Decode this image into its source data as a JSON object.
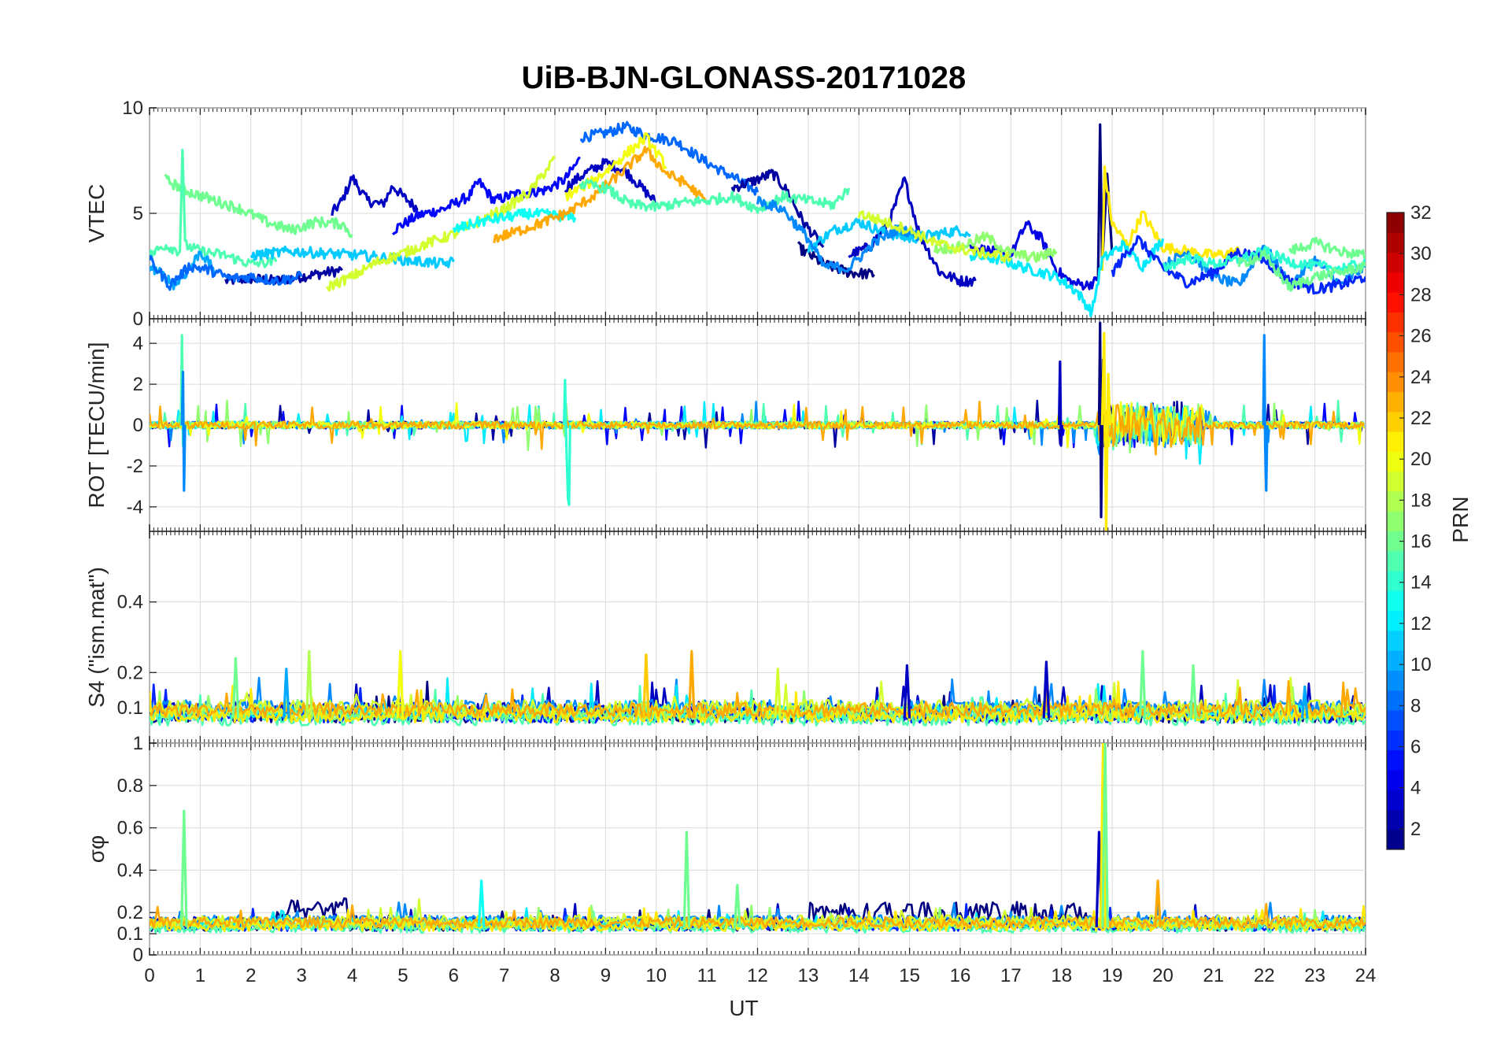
{
  "chart_data": {
    "type": "line",
    "title": "UiB-BJN-GLONASS-20171028",
    "xlabel": "UT",
    "x_range": [
      0,
      24
    ],
    "x_ticks": [
      "0",
      "1",
      "2",
      "3",
      "4",
      "5",
      "6",
      "7",
      "8",
      "9",
      "10",
      "11",
      "12",
      "13",
      "14",
      "15",
      "16",
      "17",
      "18",
      "19",
      "20",
      "21",
      "22",
      "23",
      "24"
    ],
    "panels": [
      {
        "name": "vtec",
        "ylabel": "VTEC",
        "ylim": [
          0,
          10
        ],
        "y_ticks": [
          {
            "v": 0,
            "label": "0"
          },
          {
            "v": 5,
            "label": "5"
          },
          {
            "v": 10,
            "label": "10"
          }
        ],
        "series": [
          {
            "prn": 2,
            "x": [
              1.5,
              2.0,
              2.5,
              3.0,
              3.5,
              3.8
            ],
            "y": [
              1.8,
              1.9,
              1.8,
              2.0,
              2.2,
              2.3
            ]
          },
          {
            "prn": 3,
            "x": [
              3.6,
              3.8,
              4.0,
              4.3,
              4.6,
              4.8,
              5.0,
              5.3
            ],
            "y": [
              5.0,
              5.6,
              6.7,
              5.6,
              5.4,
              6.3,
              5.8,
              5.2
            ]
          },
          {
            "prn": 5,
            "x": [
              4.8,
              5.3,
              5.8,
              6.3,
              6.5,
              6.8,
              7.2,
              7.8,
              8.2,
              8.5
            ],
            "y": [
              4.2,
              4.9,
              5.2,
              5.8,
              6.5,
              5.6,
              5.9,
              6.1,
              6.6,
              7.6
            ]
          },
          {
            "prn": 8,
            "x": [
              8.5,
              9.0,
              9.4,
              9.8,
              10.4,
              11.0,
              11.6,
              12.0
            ],
            "y": [
              8.6,
              8.8,
              9.1,
              8.7,
              8.4,
              7.4,
              6.6,
              6.0
            ]
          },
          {
            "prn": 3,
            "x": [
              8.2,
              8.6,
              9.0,
              9.4,
              9.8,
              10.0
            ],
            "y": [
              6.2,
              6.9,
              7.4,
              7.0,
              6.0,
              5.5
            ]
          },
          {
            "prn": 2,
            "x": [
              11.5,
              12.0,
              12.3,
              12.6,
              12.9,
              13.3
            ],
            "y": [
              6.2,
              6.6,
              6.9,
              6.0,
              4.6,
              3.4
            ]
          },
          {
            "prn": 1,
            "x": [
              12.8,
              13.3,
              13.8,
              14.3
            ],
            "y": [
              3.4,
              2.6,
              2.2,
              2.1
            ]
          },
          {
            "prn": 3,
            "x": [
              13.8,
              14.2,
              14.6,
              14.9,
              15.2,
              15.6,
              16.0,
              16.3
            ],
            "y": [
              3.0,
              3.4,
              4.6,
              6.6,
              4.0,
              2.2,
              1.8,
              1.8
            ]
          },
          {
            "prn": 11,
            "x": [
              13.0,
              13.5,
              14.0,
              14.5,
              15.0,
              15.5,
              16.0,
              16.2
            ],
            "y": [
              3.3,
              4.2,
              4.6,
              4.1,
              3.8,
              4.0,
              4.2,
              4.0
            ]
          },
          {
            "prn": 4,
            "x": [
              16.2,
              16.6,
              17.0,
              17.3,
              17.6,
              17.9,
              18.2,
              18.5,
              18.7
            ],
            "y": [
              3.4,
              3.2,
              3.0,
              4.5,
              3.8,
              2.3,
              1.7,
              1.6,
              1.8
            ]
          },
          {
            "prn": 1,
            "x": [
              18.72,
              18.76,
              18.8,
              18.9,
              19.0
            ],
            "y": [
              1.8,
              9.3,
              2.5,
              6.8,
              3.0
            ]
          },
          {
            "prn": 21,
            "x": [
              18.8,
              18.85,
              19.0,
              19.3,
              19.6,
              20.0,
              20.5,
              21.0,
              21.5
            ],
            "y": [
              2.3,
              7.0,
              4.5,
              3.5,
              5.0,
              3.4,
              3.2,
              3.0,
              3.2
            ]
          },
          {
            "prn": 12,
            "x": [
              16.2,
              16.8,
              17.3,
              17.9,
              18.3,
              18.6,
              18.8,
              19.2,
              19.6,
              20.0
            ],
            "y": [
              3.0,
              2.8,
              2.4,
              2.0,
              1.3,
              0.3,
              2.8,
              3.5,
              2.5,
              3.8
            ]
          },
          {
            "prn": 9,
            "x": [
              20.0,
              20.5,
              21.0,
              21.5,
              22.0,
              22.5,
              23.0,
              23.5,
              24.0
            ],
            "y": [
              2.5,
              3.2,
              2.0,
              1.6,
              3.5,
              1.6,
              2.8,
              1.6,
              2.5
            ]
          },
          {
            "prn": 6,
            "x": [
              19.0,
              19.5,
              20.0,
              20.5,
              21.0,
              21.5,
              22.0,
              22.5,
              23.0,
              23.5,
              24.0
            ],
            "y": [
              2.2,
              3.8,
              2.4,
              1.7,
              2.2,
              3.2,
              2.8,
              1.8,
              1.4,
              1.6,
              2.0
            ]
          },
          {
            "prn": 16,
            "x": [
              0.3,
              0.8,
              1.3,
              1.8,
              2.3,
              2.8,
              3.3,
              3.8,
              4.0
            ],
            "y": [
              6.6,
              6.0,
              5.6,
              5.2,
              4.6,
              4.2,
              4.6,
              4.5,
              4.0
            ]
          },
          {
            "prn": 15,
            "x": [
              0.0,
              0.3,
              0.6,
              0.65,
              0.7,
              1.0,
              1.5,
              2.0,
              2.5
            ],
            "y": [
              3.0,
              3.5,
              3.2,
              8.1,
              3.5,
              3.2,
              3.0,
              2.6,
              2.7
            ]
          },
          {
            "prn": 10,
            "x": [
              0.0,
              0.3,
              0.5,
              0.8,
              1.0,
              1.3
            ],
            "y": [
              2.5,
              2.0,
              1.6,
              2.4,
              3.2,
              2.2
            ]
          },
          {
            "prn": 8,
            "x": [
              0.0,
              0.4,
              0.8,
              1.2,
              1.6,
              2.0,
              2.5,
              3.0
            ],
            "y": [
              2.8,
              1.6,
              2.5,
              2.3,
              1.9,
              2.0,
              1.8,
              2.0
            ]
          },
          {
            "prn": 11,
            "x": [
              2.0,
              2.8,
              3.5,
              4.2,
              5.0,
              5.8,
              6.0
            ],
            "y": [
              3.0,
              3.2,
              3.1,
              3.0,
              2.8,
              2.6,
              2.7
            ]
          },
          {
            "prn": 19,
            "x": [
              3.5,
              4.0,
              4.5,
              5.0,
              5.5,
              6.0,
              6.5,
              7.0,
              7.5,
              8.0
            ],
            "y": [
              1.5,
              2.0,
              2.7,
              3.1,
              3.6,
              4.0,
              4.6,
              5.2,
              6.0,
              7.6
            ]
          },
          {
            "prn": 13,
            "x": [
              6.0,
              6.5,
              7.0,
              7.5,
              8.0,
              8.4
            ],
            "y": [
              4.2,
              4.6,
              4.8,
              5.0,
              4.9,
              4.8
            ]
          },
          {
            "prn": 23,
            "x": [
              6.8,
              7.2,
              7.8,
              8.3,
              8.8,
              9.3,
              9.8,
              10.2,
              10.6,
              11.0
            ],
            "y": [
              3.8,
              4.1,
              4.6,
              5.1,
              5.9,
              6.9,
              8.0,
              6.9,
              6.4,
              5.5
            ]
          },
          {
            "prn": 20,
            "x": [
              8.2,
              8.8,
              9.3,
              9.8,
              10.2
            ],
            "y": [
              5.8,
              6.6,
              7.6,
              8.6,
              7.2
            ]
          },
          {
            "prn": 15,
            "x": [
              8.5,
              9.0,
              9.5,
              10.0,
              10.5,
              11.0,
              11.5,
              12.0,
              12.5,
              13.0,
              13.5,
              13.8
            ],
            "y": [
              6.4,
              6.2,
              5.4,
              5.3,
              5.5,
              5.6,
              5.8,
              5.2,
              5.8,
              5.6,
              5.4,
              6.2
            ]
          },
          {
            "prn": 9,
            "x": [
              12.0,
              12.5,
              13.0,
              13.3,
              13.8,
              14.3,
              14.8,
              15.2
            ],
            "y": [
              5.6,
              5.2,
              3.8,
              2.5,
              2.4,
              3.6,
              4.3,
              3.9
            ]
          },
          {
            "prn": 17,
            "x": [
              15.5,
              16.0,
              16.5,
              17.0,
              17.5,
              17.9
            ],
            "y": [
              3.3,
              3.4,
              3.9,
              3.1,
              2.9,
              3.2
            ]
          },
          {
            "prn": 19,
            "x": [
              14.0,
              14.5,
              15.0,
              15.5,
              16.0,
              16.5,
              17.0
            ],
            "y": [
              5.0,
              4.6,
              4.2,
              3.6,
              3.3,
              3.1,
              2.9
            ]
          },
          {
            "prn": 16,
            "x": [
              22.5,
              23.0,
              23.5,
              24.0
            ],
            "y": [
              3.2,
              3.6,
              3.2,
              3.0
            ]
          },
          {
            "prn": 14,
            "x": [
              20.0,
              20.5,
              21.0,
              21.5,
              22.0,
              22.5,
              23.0,
              23.5,
              24.0
            ],
            "y": [
              2.4,
              2.9,
              2.6,
              2.8,
              3.2,
              2.7,
              2.5,
              2.4,
              2.6
            ]
          },
          {
            "prn": 16,
            "x": [
              21.5,
              22.0,
              22.5,
              23.0,
              23.5,
              24.0
            ],
            "y": [
              2.6,
              3.0,
              1.5,
              2.0,
              2.2,
              2.5
            ]
          }
        ]
      },
      {
        "name": "rot",
        "ylabel": "ROT [TECU/min]",
        "ylim": [
          -5.2,
          5.2
        ],
        "y_ticks": [
          {
            "v": -4,
            "label": "-4"
          },
          {
            "v": -2,
            "label": "-2"
          },
          {
            "v": 0,
            "label": "0"
          },
          {
            "v": 2,
            "label": "2"
          },
          {
            "v": 4,
            "label": "4"
          }
        ],
        "series": [
          {
            "prn": 15,
            "x": [
              0.62,
              0.64,
              0.66,
              0.68
            ],
            "y": [
              0.0,
              4.4,
              -1.0,
              0.1
            ]
          },
          {
            "prn": 9,
            "x": [
              0.64,
              0.66,
              0.68,
              0.7
            ],
            "y": [
              0.0,
              2.6,
              -3.2,
              0.0
            ]
          },
          {
            "prn": 14,
            "x": [
              8.18,
              8.2,
              8.22,
              8.26,
              8.28,
              8.3
            ],
            "y": [
              0.0,
              2.2,
              -0.5,
              -3.6,
              -3.9,
              0.0
            ]
          },
          {
            "prn": 3,
            "x": [
              17.95,
              17.97,
              17.99,
              18.01
            ],
            "y": [
              0.0,
              3.1,
              -1.0,
              0.0
            ]
          },
          {
            "prn": 1,
            "x": [
              18.74,
              18.76,
              18.78,
              18.82,
              18.86
            ],
            "y": [
              0.0,
              5.0,
              -4.5,
              3.2,
              0.0
            ]
          },
          {
            "prn": 21,
            "x": [
              18.8,
              18.84,
              18.88,
              18.92,
              18.96
            ],
            "y": [
              0.0,
              4.5,
              -5.2,
              2.5,
              0.0
            ]
          },
          {
            "prn": 9,
            "x": [
              21.98,
              22.0,
              22.02,
              22.04,
              22.06
            ],
            "y": [
              0.0,
              4.4,
              -1.0,
              -3.2,
              0.0
            ]
          }
        ],
        "noise_amplitude": 0.35
      },
      {
        "name": "s4",
        "ylabel": "S4 (\"ism.mat\")",
        "ylim": [
          0,
          0.6
        ],
        "y_ticks": [
          {
            "v": 0.1,
            "label": "0.1"
          },
          {
            "v": 0.2,
            "label": "0.2"
          },
          {
            "v": 0.4,
            "label": "0.4"
          }
        ],
        "baseline": 0.07,
        "peaks": [
          {
            "prn": 16,
            "x": 1.7,
            "y": 0.24
          },
          {
            "prn": 10,
            "x": 2.7,
            "y": 0.21
          },
          {
            "prn": 18,
            "x": 3.15,
            "y": 0.26
          },
          {
            "prn": 20,
            "x": 4.95,
            "y": 0.26
          },
          {
            "prn": 22,
            "x": 9.8,
            "y": 0.25
          },
          {
            "prn": 23,
            "x": 10.7,
            "y": 0.26
          },
          {
            "prn": 19,
            "x": 12.4,
            "y": 0.21
          },
          {
            "prn": 3,
            "x": 14.95,
            "y": 0.22
          },
          {
            "prn": 3,
            "x": 17.7,
            "y": 0.23
          },
          {
            "prn": 16,
            "x": 19.6,
            "y": 0.26
          },
          {
            "prn": 16,
            "x": 20.6,
            "y": 0.22
          },
          {
            "prn": 10,
            "x": 22.8,
            "y": 0.16
          }
        ]
      },
      {
        "name": "sigma_phi",
        "ylabel": "σφ",
        "ylim": [
          0,
          1
        ],
        "y_ticks": [
          {
            "v": 0,
            "label": "0"
          },
          {
            "v": 0.1,
            "label": "0.1"
          },
          {
            "v": 0.2,
            "label": "0.2"
          },
          {
            "v": 0.4,
            "label": "0.4"
          },
          {
            "v": 0.6,
            "label": "0.6"
          },
          {
            "v": 0.8,
            "label": "0.8"
          },
          {
            "v": 1,
            "label": "1"
          }
        ],
        "baseline": 0.13,
        "peaks": [
          {
            "prn": 16,
            "x": 0.68,
            "y": 0.68
          },
          {
            "prn": 16,
            "x": 10.6,
            "y": 0.58
          },
          {
            "prn": 13,
            "x": 6.55,
            "y": 0.35
          },
          {
            "prn": 16,
            "x": 11.6,
            "y": 0.33
          },
          {
            "prn": 3,
            "x": 18.74,
            "y": 0.58
          },
          {
            "prn": 21,
            "x": 18.82,
            "y": 1.0
          },
          {
            "prn": 16,
            "x": 18.86,
            "y": 1.0
          },
          {
            "prn": 23,
            "x": 19.9,
            "y": 0.35
          }
        ],
        "bands": [
          {
            "prn": 1,
            "x0": 2.5,
            "x1": 3.9,
            "level": 0.22
          },
          {
            "prn": 1,
            "x0": 13.0,
            "x1": 18.5,
            "level": 0.2
          }
        ]
      }
    ],
    "colorbar": {
      "label": "PRN",
      "range": [
        1,
        32
      ],
      "ticks": [
        "2",
        "4",
        "6",
        "8",
        "10",
        "12",
        "14",
        "16",
        "18",
        "20",
        "22",
        "24",
        "26",
        "28",
        "30",
        "32"
      ]
    }
  }
}
